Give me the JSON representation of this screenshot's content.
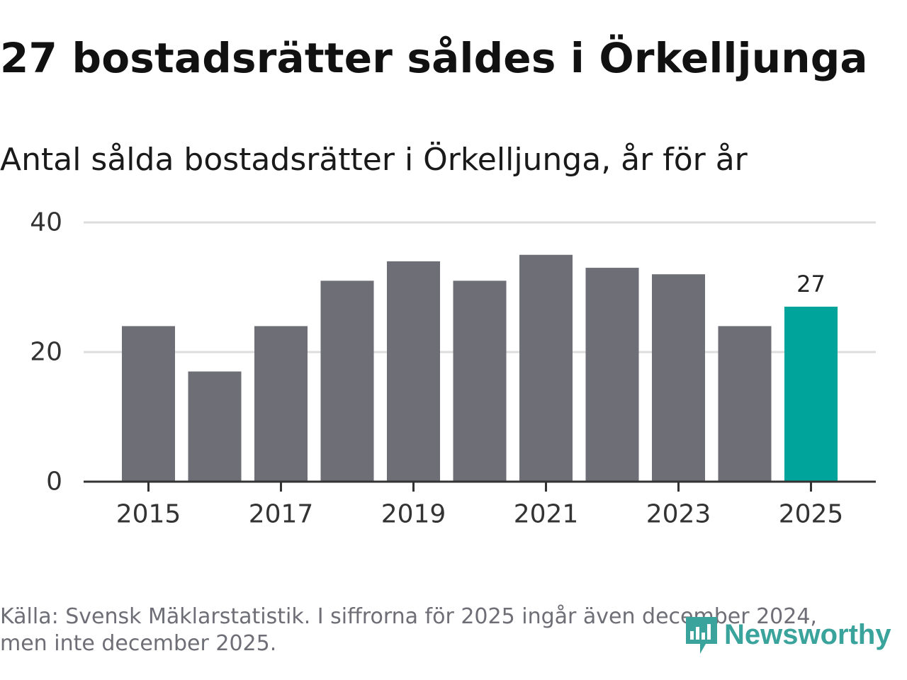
{
  "title": "27 bostadsrätter såldes i Örkelljunga",
  "subtitle": "Antal sålda bostadsrätter i Örkelljunga, år för år",
  "source": "Källa: Svensk Mäklarstatistik. I siffrorna för 2025 ingår även december 2024, men inte december 2025.",
  "logo": {
    "text": "Newsworthy",
    "icon": "newsworthy-logo-icon"
  },
  "colors": {
    "bar": "#6e6e76",
    "highlight": "#00a49a",
    "grid": "#dddddd",
    "axis": "#333333"
  },
  "chart_data": {
    "type": "bar",
    "categories": [
      "2015",
      "2016",
      "2017",
      "2018",
      "2019",
      "2020",
      "2021",
      "2022",
      "2023",
      "2024",
      "2025"
    ],
    "values": [
      24,
      17,
      24,
      31,
      34,
      31,
      35,
      33,
      32,
      24,
      27
    ],
    "x_tick_labels": [
      "2015",
      "2017",
      "2019",
      "2021",
      "2023",
      "2025"
    ],
    "y_ticks": [
      0,
      20,
      40
    ],
    "ylim": [
      0,
      40
    ],
    "highlight": "2025",
    "data_labels": [
      {
        "category": "2025",
        "text": "27"
      }
    ],
    "title": "Antal sålda bostadsrätter i Örkelljunga, år för år",
    "xlabel": "",
    "ylabel": "",
    "grid": true
  }
}
